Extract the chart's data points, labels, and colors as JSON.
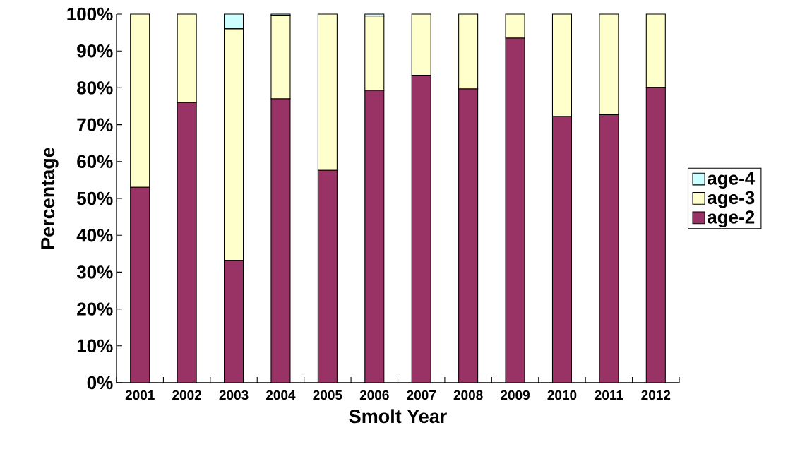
{
  "chart_data": {
    "type": "bar",
    "stacked": true,
    "xlabel": "Smolt Year",
    "ylabel": "Percentage",
    "categories": [
      "2001",
      "2002",
      "2003",
      "2004",
      "2005",
      "2006",
      "2007",
      "2008",
      "2009",
      "2010",
      "2011",
      "2012"
    ],
    "series": [
      {
        "name": "age-2",
        "color": "#993366",
        "values": [
          53.0,
          76.0,
          33.2,
          77.0,
          57.6,
          79.3,
          83.4,
          79.7,
          93.5,
          72.2,
          72.7,
          80.1
        ]
      },
      {
        "name": "age-3",
        "color": "#ffffcc",
        "values": [
          47.0,
          24.0,
          62.8,
          22.7,
          42.4,
          20.2,
          16.6,
          20.3,
          6.5,
          27.8,
          27.3,
          19.9
        ]
      },
      {
        "name": "age-4",
        "color": "#ccffff",
        "values": [
          0,
          0,
          4.0,
          0.3,
          0,
          0.5,
          0,
          0,
          0,
          0,
          0,
          0
        ]
      }
    ],
    "ylim": [
      0,
      100
    ],
    "yticks": [
      {
        "value": 0,
        "label": "0%"
      },
      {
        "value": 10,
        "label": "10%"
      },
      {
        "value": 20,
        "label": "20%"
      },
      {
        "value": 30,
        "label": "30%"
      },
      {
        "value": 40,
        "label": "40%"
      },
      {
        "value": 50,
        "label": "50%"
      },
      {
        "value": 60,
        "label": "60%"
      },
      {
        "value": 70,
        "label": "70%"
      },
      {
        "value": 80,
        "label": "80%"
      },
      {
        "value": 90,
        "label": "90%"
      },
      {
        "value": 100,
        "label": "100%"
      }
    ],
    "grid": false,
    "legend": "right"
  }
}
